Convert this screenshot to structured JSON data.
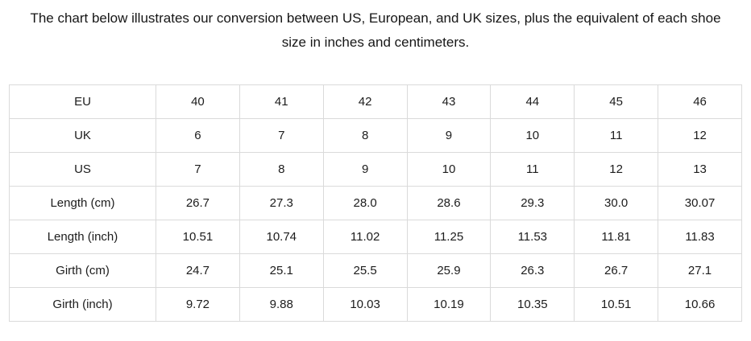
{
  "heading": "The chart below illustrates our conversion between US, European, and UK sizes, plus the equivalent of each shoe size in inches and centimeters.",
  "table": {
    "rows": [
      {
        "label": "EU",
        "values": [
          "40",
          "41",
          "42",
          "43",
          "44",
          "45",
          "46"
        ]
      },
      {
        "label": "UK",
        "values": [
          "6",
          "7",
          "8",
          "9",
          "10",
          "11",
          "12"
        ]
      },
      {
        "label": "US",
        "values": [
          "7",
          "8",
          "9",
          "10",
          "11",
          "12",
          "13"
        ]
      },
      {
        "label": "Length (cm)",
        "values": [
          "26.7",
          "27.3",
          "28.0",
          "28.6",
          "29.3",
          "30.0",
          "30.07"
        ]
      },
      {
        "label": "Length (inch)",
        "values": [
          "10.51",
          "10.74",
          "11.02",
          "11.25",
          "11.53",
          "11.81",
          "11.83"
        ]
      },
      {
        "label": "Girth (cm)",
        "values": [
          "24.7",
          "25.1",
          "25.5",
          "25.9",
          "26.3",
          "26.7",
          "27.1"
        ]
      },
      {
        "label": "Girth (inch)",
        "values": [
          "9.72",
          "9.88",
          "10.03",
          "10.19",
          "10.35",
          "10.51",
          "10.66"
        ]
      }
    ]
  },
  "colors": {
    "border": "#dadada",
    "text": "#1c1c1c"
  }
}
